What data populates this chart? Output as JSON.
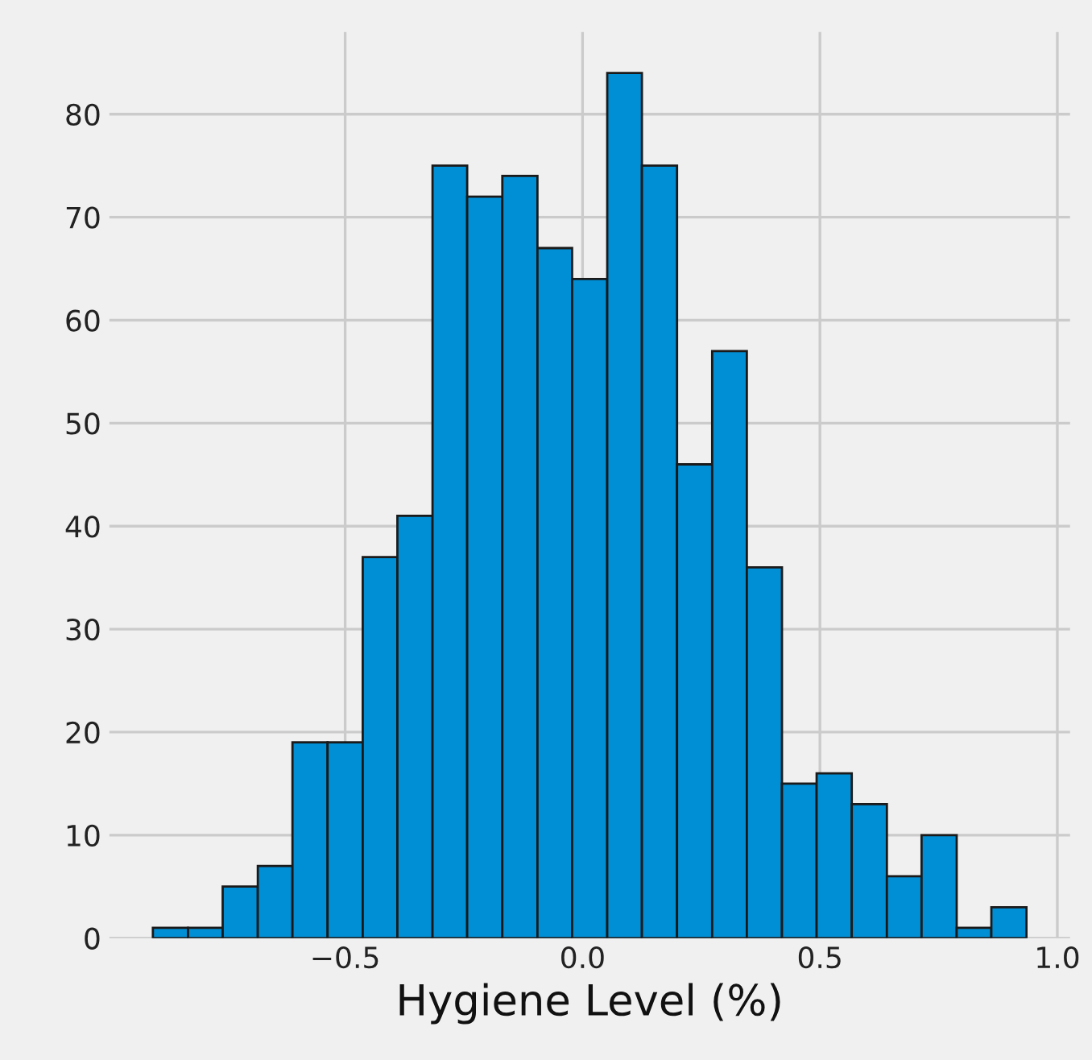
{
  "chart_data": {
    "type": "histogram",
    "xlabel": "Hygiene Level (%)",
    "bins": [
      -0.905,
      -0.831,
      -0.758,
      -0.684,
      -0.611,
      -0.537,
      -0.463,
      -0.39,
      -0.316,
      -0.243,
      -0.169,
      -0.095,
      -0.022,
      0.052,
      0.125,
      0.199,
      0.273,
      0.346,
      0.42,
      0.493,
      0.567,
      0.641,
      0.714,
      0.788,
      0.861,
      0.935
    ],
    "values": [
      1,
      1,
      5,
      7,
      19,
      19,
      37,
      41,
      75,
      72,
      74,
      67,
      64,
      84,
      75,
      46,
      57,
      36,
      15,
      16,
      13,
      6,
      10,
      1,
      3
    ],
    "color": "#008fd5",
    "xlim": [
      -0.997,
      1.027
    ],
    "xticks": [
      {
        "value": -0.5,
        "label": "−0.5"
      },
      {
        "value": 0,
        "label": "0.0"
      },
      0.5,
      {
        "value": 1,
        "label": "1.0"
      }
    ],
    "ylim": [
      0,
      88
    ],
    "yticks": [
      0,
      10,
      20,
      30,
      40,
      50,
      60,
      70,
      80
    ],
    "grid": true
  }
}
